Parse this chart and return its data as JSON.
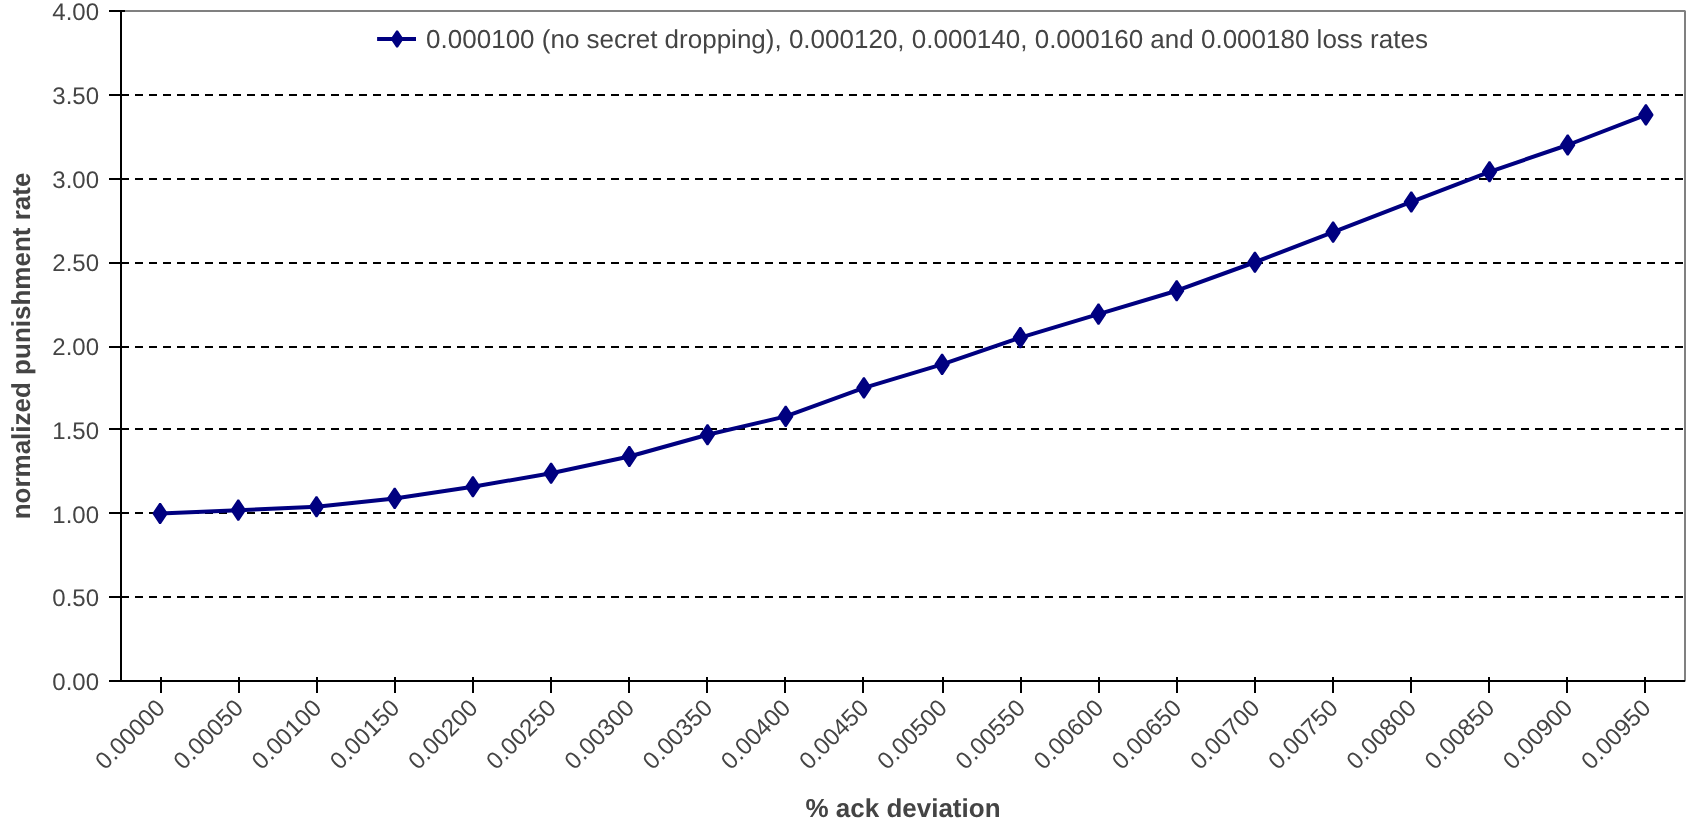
{
  "chart_data": {
    "type": "line",
    "xlabel": "% ack deviation",
    "ylabel": "normalized punishment rate",
    "categories": [
      "0.00000",
      "0.00050",
      "0.00100",
      "0.00150",
      "0.00200",
      "0.00250",
      "0.00300",
      "0.00350",
      "0.00400",
      "0.00450",
      "0.00500",
      "0.00550",
      "0.00600",
      "0.00650",
      "0.00700",
      "0.00750",
      "0.00800",
      "0.00850",
      "0.00900",
      "0.00950"
    ],
    "series": [
      {
        "name": "0.000100 (no secret dropping), 0.000120, 0.000140, 0.000160 and 0.000180 loss rates",
        "color": "#000080",
        "values": [
          1.0,
          1.02,
          1.04,
          1.09,
          1.16,
          1.24,
          1.34,
          1.47,
          1.58,
          1.75,
          1.89,
          2.05,
          2.19,
          2.33,
          2.5,
          2.68,
          2.86,
          3.04,
          3.2,
          3.38
        ]
      }
    ],
    "ylim": [
      0,
      4
    ],
    "yticks": [
      {
        "value": 0,
        "label": "0.00"
      },
      {
        "value": 0.5,
        "label": "0.50"
      },
      {
        "value": 1,
        "label": "1.00"
      },
      {
        "value": 1.5,
        "label": "1.50"
      },
      {
        "value": 2,
        "label": "2.00"
      },
      {
        "value": 2.5,
        "label": "2.50"
      },
      {
        "value": 3,
        "label": "3.00"
      },
      {
        "value": 3.5,
        "label": "3.50"
      },
      {
        "value": 4,
        "label": "4.00"
      }
    ],
    "grid": "y",
    "legend": "top",
    "marker": "diamond",
    "line_style": "solid"
  }
}
